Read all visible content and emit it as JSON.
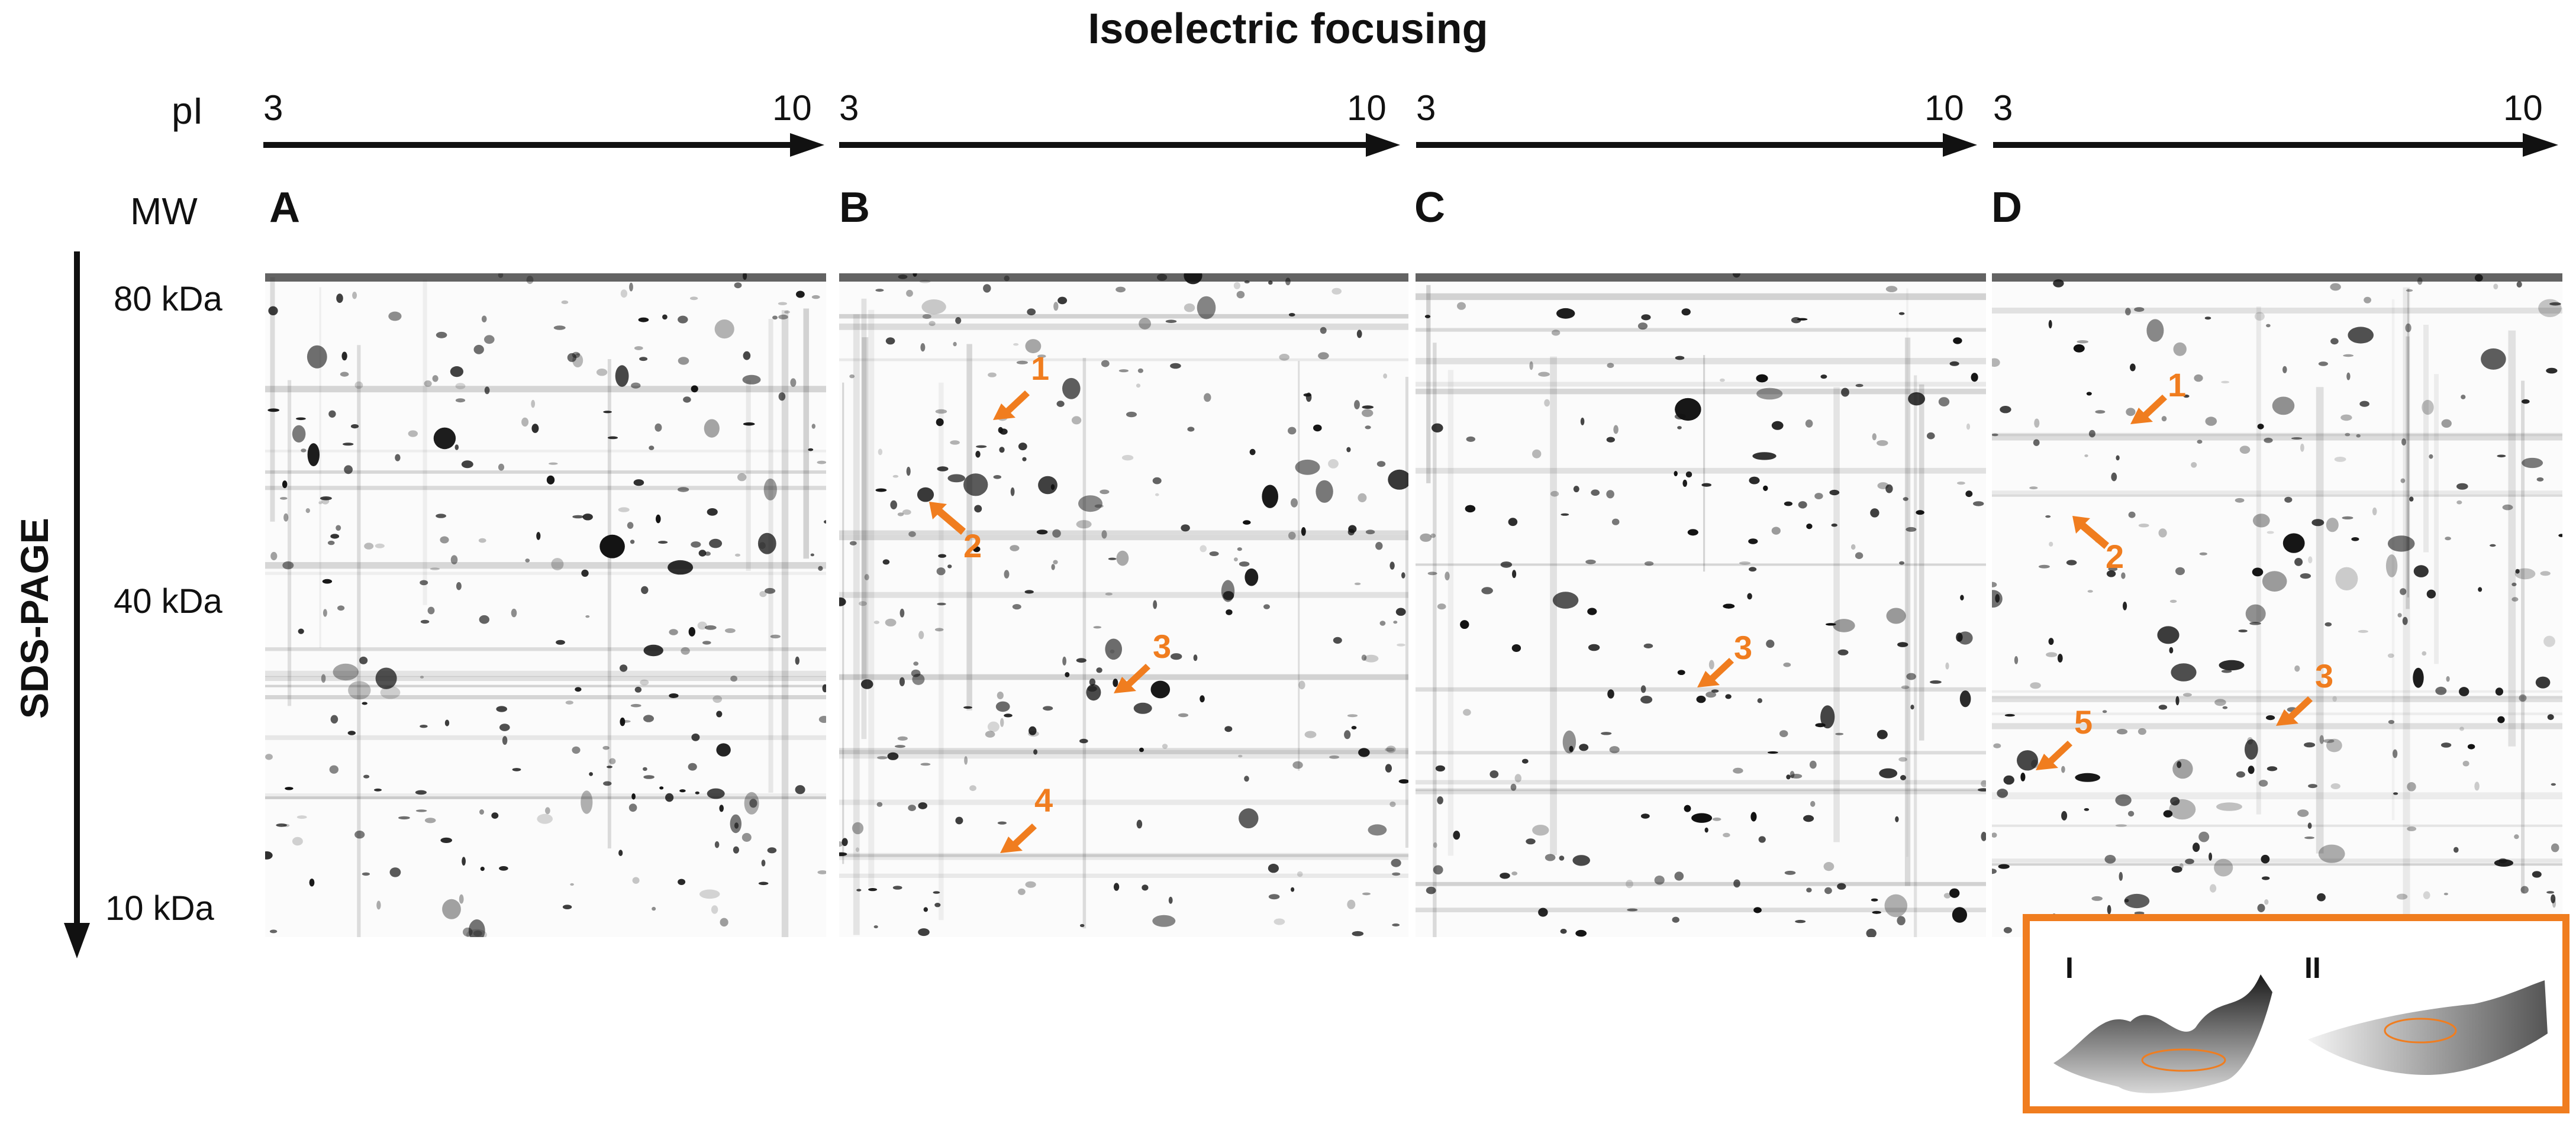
{
  "title": "Isoelectric focusing",
  "axis_labels": {
    "pi": "pI",
    "mw": "MW",
    "sds": "SDS-PAGE"
  },
  "pi_range": {
    "start": "3",
    "end": "10"
  },
  "mw_ticks": [
    "80 kDa",
    "40 kDa",
    "10 kDa"
  ],
  "panels": [
    {
      "letter": "A",
      "markers": []
    },
    {
      "letter": "B",
      "markers": [
        "1",
        "2",
        "3",
        "4"
      ]
    },
    {
      "letter": "C",
      "markers": [
        "3"
      ]
    },
    {
      "letter": "D",
      "markers": [
        "1",
        "2",
        "3",
        "5"
      ]
    }
  ],
  "inset": {
    "labels": [
      "I",
      "II"
    ]
  },
  "colors": {
    "marker": "#f07d1f",
    "spot": "#111111",
    "inset_border": "#f07d1f"
  }
}
